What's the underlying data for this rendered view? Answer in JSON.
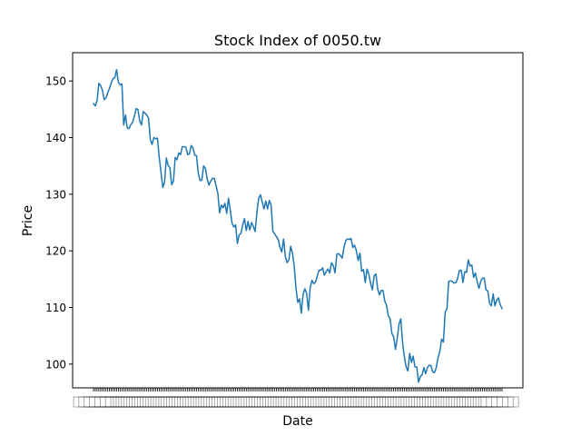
{
  "chart_data": {
    "type": "line",
    "title": "Stock Index of 0050.tw",
    "xlabel": "Date",
    "ylabel": "Price",
    "ylim": [
      95.8,
      155.0
    ],
    "yticks": [
      100,
      110,
      120,
      130,
      140,
      150
    ],
    "grid": false,
    "legend": "none",
    "series": [
      {
        "color": "#1f77b4",
        "values": [
          146.0,
          145.6,
          146.5,
          149.6,
          149.2,
          148.4,
          146.7,
          147.0,
          147.9,
          148.7,
          149.7,
          150.4,
          150.6,
          152.0,
          149.8,
          149.3,
          149.5,
          142.2,
          144.0,
          141.7,
          141.6,
          142.3,
          142.7,
          143.8,
          145.1,
          145.0,
          143.0,
          142.2,
          144.6,
          144.3,
          144.0,
          143.4,
          139.6,
          138.8,
          140.0,
          139.8,
          139.9,
          136.5,
          133.9,
          131.2,
          132.1,
          136.4,
          135.1,
          134.7,
          131.7,
          132.3,
          136.5,
          136.1,
          137.3,
          137.0,
          138.4,
          138.4,
          138.3,
          137.0,
          137.1,
          138.6,
          138.2,
          136.9,
          136.8,
          133.7,
          132.4,
          132.5,
          135.0,
          134.6,
          132.7,
          131.6,
          132.3,
          132.8,
          132.8,
          131.5,
          130.2,
          126.7,
          128.1,
          127.6,
          128.4,
          126.6,
          129.3,
          127.2,
          124.9,
          124.2,
          124.6,
          121.3,
          122.8,
          123.1,
          124.6,
          125.7,
          123.6,
          125.2,
          123.7,
          125.0,
          124.3,
          123.4,
          126.8,
          129.3,
          129.9,
          128.6,
          127.4,
          128.8,
          127.4,
          128.9,
          128.1,
          123.4,
          123.0,
          122.5,
          122.0,
          120.6,
          119.8,
          122.1,
          119.0,
          117.9,
          118.4,
          120.8,
          119.6,
          117.3,
          113.4,
          110.9,
          111.5,
          109.0,
          112.3,
          113.3,
          112.5,
          109.5,
          113.5,
          114.8,
          114.2,
          114.5,
          115.6,
          116.6,
          116.6,
          117.0,
          115.7,
          116.3,
          116.8,
          116.1,
          117.9,
          117.4,
          116.1,
          119.4,
          119.5,
          119.2,
          118.7,
          120.6,
          121.8,
          122.1,
          122.0,
          122.2,
          120.6,
          121.0,
          120.0,
          118.3,
          119.6,
          116.4,
          116.7,
          114.4,
          116.8,
          115.9,
          114.3,
          113.1,
          115.6,
          115.9,
          113.3,
          112.2,
          113.0,
          113.0,
          111.1,
          110.4,
          108.5,
          108.0,
          105.4,
          104.8,
          102.6,
          104.5,
          107.1,
          108.0,
          103.8,
          101.3,
          99.5,
          98.8,
          101.9,
          100.3,
          101.4,
          99.5,
          99.5,
          96.8,
          97.8,
          98.1,
          99.4,
          98.3,
          99.4,
          99.8,
          99.7,
          98.6,
          98.5,
          99.4,
          101.2,
          102.2,
          104.4,
          103.9,
          109.2,
          109.8,
          114.6,
          114.7,
          114.6,
          114.3,
          114.4,
          115.1,
          116.5,
          116.6,
          114.4,
          116.3,
          116.2,
          118.4,
          117.3,
          117.5,
          115.3,
          116.1,
          114.6,
          113.4,
          114.6,
          115.2,
          115.2,
          113.1,
          112.9,
          110.7,
          110.3,
          112.4,
          110.3,
          111.3,
          111.7,
          110.5,
          109.8
        ]
      }
    ]
  }
}
